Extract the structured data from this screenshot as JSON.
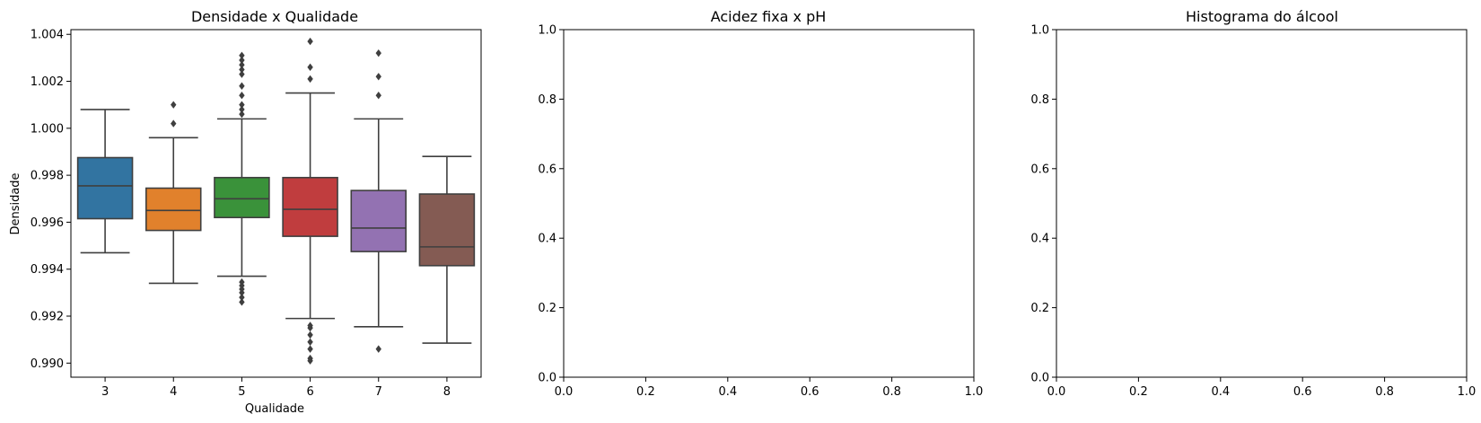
{
  "chart_data": [
    {
      "type": "box",
      "title": "Densidade x Qualidade",
      "xlabel": "Qualidade",
      "ylabel": "Densidade",
      "ylim": [
        0.9894,
        1.0042
      ],
      "yticks": [
        "0.990",
        "0.992",
        "0.994",
        "0.996",
        "0.998",
        "1.000",
        "1.002",
        "1.004"
      ],
      "ytick_values": [
        0.99,
        0.992,
        0.994,
        0.996,
        0.998,
        1.0,
        1.002,
        1.004
      ],
      "categories": [
        "3",
        "4",
        "5",
        "6",
        "7",
        "8"
      ],
      "colors": [
        "#3274a1",
        "#e1812c",
        "#3a923a",
        "#c03d3e",
        "#9372b2",
        "#845b53"
      ],
      "boxes": [
        {
          "q1": 0.99615,
          "median": 0.99755,
          "q3": 0.99875,
          "whisker_low": 0.9947,
          "whisker_high": 1.0008,
          "outliers": []
        },
        {
          "q1": 0.99565,
          "median": 0.9965,
          "q3": 0.99745,
          "whisker_low": 0.9934,
          "whisker_high": 0.9996,
          "outliers": [
            1.0002,
            1.001
          ]
        },
        {
          "q1": 0.9962,
          "median": 0.997,
          "q3": 0.9979,
          "whisker_low": 0.9937,
          "whisker_high": 1.0004,
          "outliers": [
            0.9926,
            0.9928,
            0.993,
            0.99315,
            0.9933,
            0.99345,
            1.0006,
            1.0008,
            1.001,
            1.0014,
            1.0018,
            1.0023,
            1.0025,
            1.0027,
            1.0029,
            1.0031
          ]
        },
        {
          "q1": 0.9954,
          "median": 0.99655,
          "q3": 0.9979,
          "whisker_low": 0.9919,
          "whisker_high": 1.0015,
          "outliers": [
            0.9901,
            0.9902,
            0.9906,
            0.9909,
            0.9912,
            0.9915,
            0.9916,
            1.0021,
            1.0026,
            1.0037
          ]
        },
        {
          "q1": 0.99475,
          "median": 0.99575,
          "q3": 0.99735,
          "whisker_low": 0.99155,
          "whisker_high": 1.0004,
          "outliers": [
            0.9906,
            1.0014,
            1.0022,
            1.0032
          ]
        },
        {
          "q1": 0.99415,
          "median": 0.99495,
          "q3": 0.9972,
          "whisker_low": 0.99085,
          "whisker_high": 0.9988,
          "outliers": []
        }
      ]
    },
    {
      "type": "empty",
      "title": "Acidez fixa x pH",
      "xlim": [
        0.0,
        1.0
      ],
      "ylim": [
        0.0,
        1.0
      ],
      "xticks": [
        "0.0",
        "0.2",
        "0.4",
        "0.6",
        "0.8",
        "1.0"
      ],
      "yticks": [
        "0.0",
        "0.2",
        "0.4",
        "0.6",
        "0.8",
        "1.0"
      ]
    },
    {
      "type": "empty",
      "title": "Histograma do álcool",
      "xlim": [
        0.0,
        1.0
      ],
      "ylim": [
        0.0,
        1.0
      ],
      "xticks": [
        "0.0",
        "0.2",
        "0.4",
        "0.6",
        "0.8",
        "1.0"
      ],
      "yticks": [
        "0.0",
        "0.2",
        "0.4",
        "0.6",
        "0.8",
        "1.0"
      ]
    }
  ]
}
